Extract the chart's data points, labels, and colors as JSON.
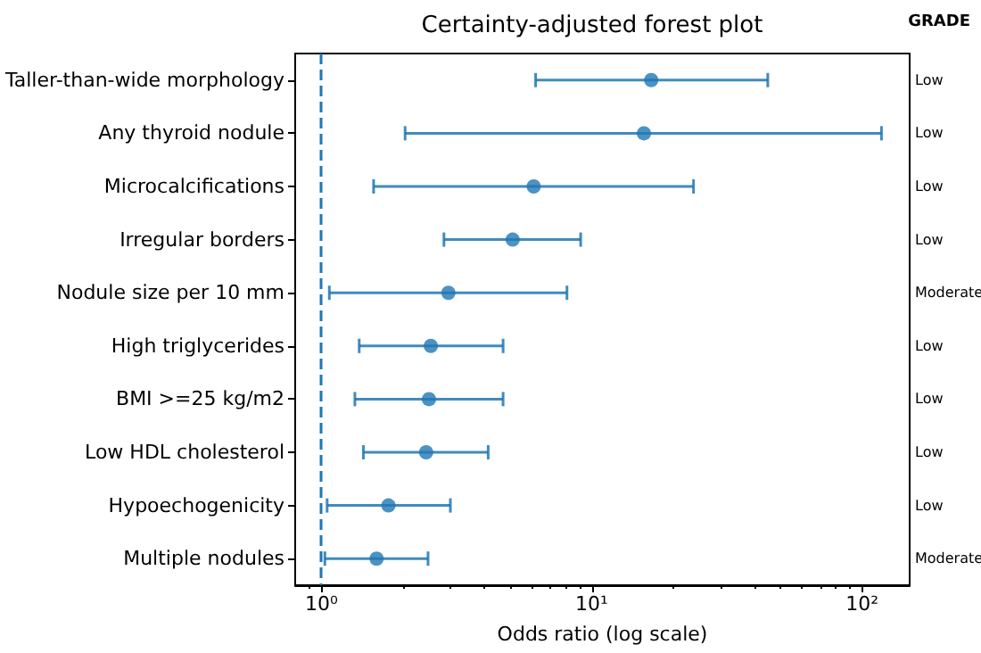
{
  "chart_data": {
    "type": "scatter",
    "title": "Certainty-adjusted forest plot",
    "xlabel": "Odds ratio (log scale)",
    "categories": [
      "Taller-than-wide morphology",
      "Any thyroid nodule",
      "Microcalcifications",
      "Irregular borders",
      "Nodule size per 10 mm",
      "High triglycerides",
      "BMI >=25 kg/m2",
      "Low HDL cholesterol",
      "Hypoechogenicity",
      "Multiple nodules"
    ],
    "orientation": "horizontal",
    "series": [
      {
        "color": "#1f77b4",
        "values": [
          16.6,
          15.6,
          6.1,
          5.1,
          2.95,
          2.54,
          2.5,
          2.44,
          1.77,
          1.6
        ],
        "errors": [
          [
            6.2,
            44.8
          ],
          [
            2.04,
            118
          ],
          [
            1.56,
            23.8
          ],
          [
            2.84,
            9.1
          ],
          [
            1.07,
            8.1
          ],
          [
            1.38,
            4.7
          ],
          [
            1.33,
            4.7
          ],
          [
            1.43,
            4.14
          ],
          [
            1.05,
            3.0
          ],
          [
            1.03,
            2.48
          ]
        ]
      }
    ],
    "xlim": [
      0.8,
      150
    ],
    "xticks": [
      {
        "value": 1,
        "label": "10⁰"
      },
      {
        "value": 10,
        "label": "10¹"
      },
      {
        "value": 100,
        "label": "10²"
      }
    ],
    "log": "x",
    "marker": "circle",
    "grid": false,
    "ref_lines": [
      {
        "axis": "x",
        "value": 1,
        "color": "#1f77b4",
        "line_style": "dashed"
      }
    ],
    "annotations": [
      "GRADE",
      "Low",
      "Low",
      "Low",
      "Low",
      "Moderate",
      "Low",
      "Low",
      "Low",
      "Low",
      "Moderate"
    ]
  }
}
